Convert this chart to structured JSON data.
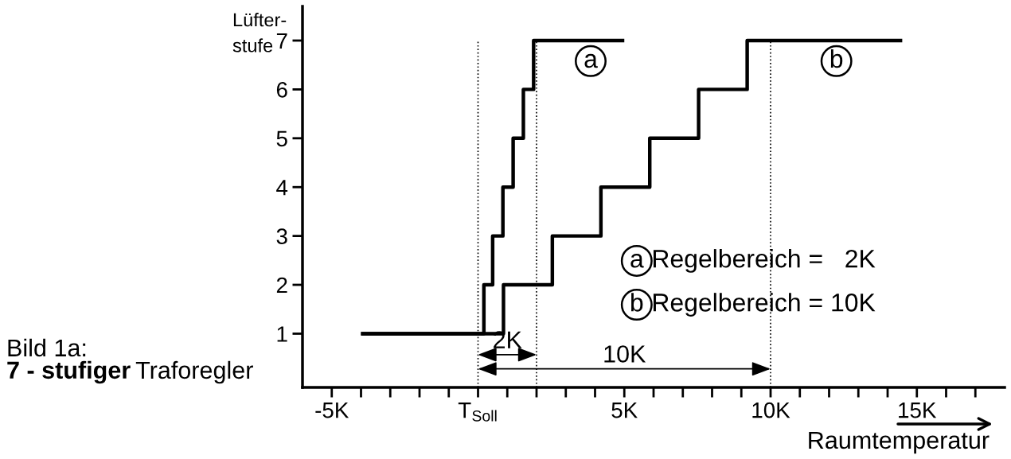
{
  "chart_data": {
    "type": "step",
    "xlabel": "Raumtemperatur",
    "ylabel": "Lüfter-\nstufe",
    "annotations": [
      "Bild 1a:",
      "7 - stufiger",
      "Traforegler",
      "Regelbereich =   2K",
      "Regelbereich = 10K",
      "2K",
      "10K"
    ],
    "series": [
      {
        "name": "a",
        "color": "#000000",
        "x": [
          -4,
          0.2,
          0.5,
          0.85,
          1.2,
          1.55,
          1.9,
          5
        ],
        "values": [
          1,
          2,
          3,
          4,
          5,
          6,
          7,
          7
        ]
      },
      {
        "name": "b",
        "color": "#000000",
        "x": [
          -4,
          0.87,
          2.54,
          4.2,
          5.87,
          7.54,
          9.2,
          14.5
        ],
        "values": [
          1,
          2,
          3,
          4,
          5,
          6,
          7,
          7
        ]
      }
    ],
    "xlim": [
      -6,
      18
    ],
    "xticks": [
      {
        "value": -5,
        "label": "-5K"
      },
      {
        "value": -4,
        "label": null
      },
      {
        "value": -3,
        "label": null
      },
      {
        "value": -2,
        "label": null
      },
      {
        "value": -1,
        "label": null
      },
      {
        "value": 0,
        "label": "T$_{Soll}$"
      },
      {
        "value": 1,
        "label": null
      },
      {
        "value": 2,
        "label": null
      },
      {
        "value": 3,
        "label": null
      },
      {
        "value": 4,
        "label": null
      },
      {
        "value": 5,
        "label": "5K"
      },
      {
        "value": 6,
        "label": null
      },
      {
        "value": 7,
        "label": null
      },
      {
        "value": 8,
        "label": null
      },
      {
        "value": 9,
        "label": null
      },
      {
        "value": 10,
        "label": "10K"
      },
      {
        "value": 11,
        "label": null
      },
      {
        "value": 12,
        "label": null
      },
      {
        "value": 13,
        "label": null
      },
      {
        "value": 14,
        "label": null
      },
      {
        "value": 15,
        "label": "15K"
      },
      {
        "value": 16,
        "label": null
      },
      {
        "value": 17,
        "label": null
      }
    ],
    "ylim": [
      -0.1,
      7.7
    ],
    "yticks": [
      1,
      2,
      3,
      4,
      5,
      6,
      7
    ],
    "ref_lines": [
      {
        "axis": "x",
        "value": 0,
        "line_style": "dotted"
      },
      {
        "axis": "x",
        "value": 2,
        "line_style": "dotted"
      },
      {
        "axis": "x",
        "value": 10,
        "line_style": "dotted"
      }
    ],
    "grid": false,
    "legend": "bottom right",
    "line_style": "solid"
  }
}
